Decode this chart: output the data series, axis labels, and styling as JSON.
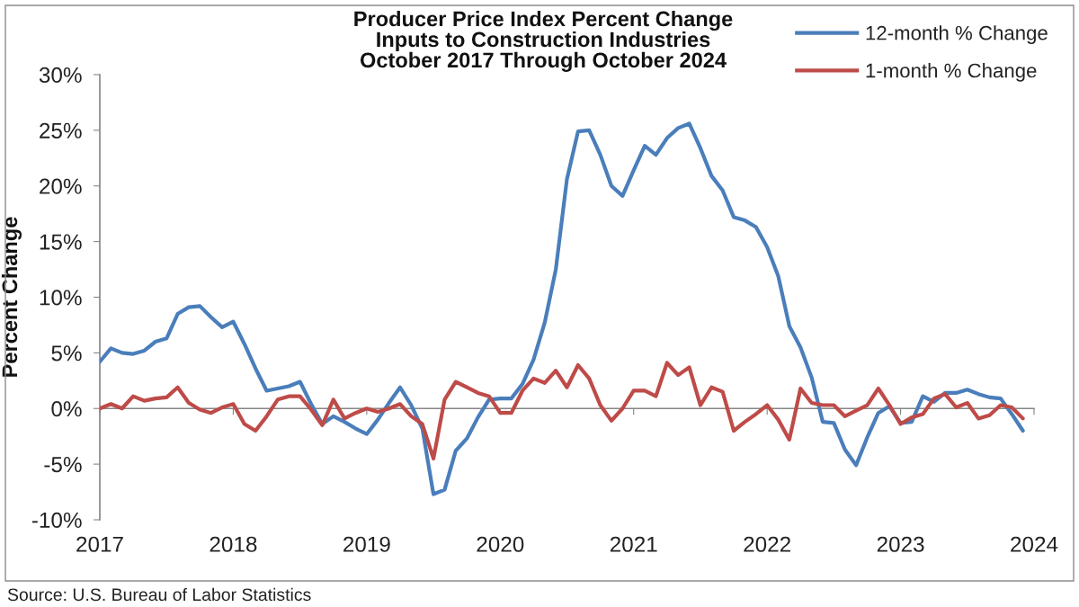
{
  "chart_data": {
    "type": "line",
    "title": "Producer Price Index Percent Change\nInputs to Construction Industries\nOctober 2017 Through October 2024",
    "ylabel": "Percent Change",
    "categories": [
      "2017",
      null,
      null,
      null,
      null,
      null,
      null,
      null,
      null,
      null,
      null,
      null,
      "2018",
      null,
      null,
      null,
      null,
      null,
      null,
      null,
      null,
      null,
      null,
      null,
      "2019",
      null,
      null,
      null,
      null,
      null,
      null,
      null,
      null,
      null,
      null,
      null,
      "2020",
      null,
      null,
      null,
      null,
      null,
      null,
      null,
      null,
      null,
      null,
      null,
      "2021",
      null,
      null,
      null,
      null,
      null,
      null,
      null,
      null,
      null,
      null,
      null,
      "2022",
      null,
      null,
      null,
      null,
      null,
      null,
      null,
      null,
      null,
      null,
      null,
      "2023",
      null,
      null,
      null,
      null,
      null,
      null,
      null,
      null,
      null,
      null,
      null,
      "2024"
    ],
    "series": [
      {
        "name": "12-month % Change",
        "color": "#4A7EBB",
        "values": [
          4.2,
          5.4,
          5.0,
          4.9,
          5.2,
          6.0,
          6.3,
          8.5,
          9.1,
          9.2,
          8.2,
          7.3,
          7.8,
          5.8,
          3.6,
          1.6,
          1.8,
          2.0,
          2.4,
          0.4,
          -1.4,
          -0.7,
          -1.2,
          -1.8,
          -2.3,
          -1.0,
          0.5,
          1.9,
          0.3,
          -1.8,
          -7.7,
          -7.3,
          -3.8,
          -2.7,
          -0.8,
          0.8,
          0.9,
          0.9,
          2.2,
          4.4,
          7.7,
          12.5,
          20.6,
          24.9,
          25.0,
          22.8,
          20.0,
          19.1,
          21.4,
          23.6,
          22.8,
          24.3,
          25.2,
          25.6,
          23.4,
          20.9,
          19.6,
          17.2,
          16.9,
          16.3,
          14.5,
          11.9,
          7.4,
          5.5,
          2.8,
          -1.2,
          -1.3,
          -3.7,
          -5.1,
          -2.6,
          -0.4,
          0.2,
          -1.3,
          -1.2,
          1.1,
          0.6,
          1.4,
          1.4,
          1.7,
          1.3,
          1.0,
          0.9,
          -0.5,
          -2.0,
          null
        ]
      },
      {
        "name": "1-month % Change",
        "color": "#BE4B48",
        "values": [
          0.0,
          0.4,
          0.0,
          1.1,
          0.7,
          0.9,
          1.0,
          1.9,
          0.5,
          -0.1,
          -0.4,
          0.1,
          0.4,
          -1.4,
          -2.0,
          -0.7,
          0.8,
          1.1,
          1.1,
          -0.1,
          -1.5,
          0.8,
          -0.9,
          -0.4,
          0.0,
          -0.3,
          0.0,
          0.4,
          -0.7,
          -1.4,
          -4.5,
          0.8,
          2.4,
          1.9,
          1.4,
          1.1,
          -0.4,
          -0.4,
          1.6,
          2.7,
          2.3,
          3.4,
          1.9,
          3.9,
          2.7,
          0.3,
          -1.1,
          0.0,
          1.6,
          1.6,
          1.1,
          4.1,
          3.0,
          3.7,
          0.3,
          1.9,
          1.5,
          -2.0,
          -1.2,
          -0.5,
          0.3,
          -1.0,
          -2.8,
          1.8,
          0.5,
          0.3,
          0.3,
          -0.7,
          -0.2,
          0.3,
          1.8,
          0.3,
          -1.4,
          -0.8,
          -0.5,
          0.9,
          1.3,
          0.1,
          0.5,
          -0.9,
          -0.6,
          0.3,
          0.1,
          -0.9,
          null
        ]
      }
    ],
    "ylim": [
      -10,
      30
    ],
    "yticks": [
      {
        "value": -10,
        "label": "-10%"
      },
      {
        "value": -5,
        "label": "-5%"
      },
      {
        "value": 0,
        "label": "0%"
      },
      {
        "value": 5,
        "label": "5%"
      },
      {
        "value": 10,
        "label": "10%"
      },
      {
        "value": 15,
        "label": "15%"
      },
      {
        "value": 20,
        "label": "20%"
      },
      {
        "value": 25,
        "label": "25%"
      },
      {
        "value": 30,
        "label": "30%"
      }
    ],
    "legend": "top right",
    "line_style": "solid",
    "annotations": [
      "Source: U.S. Bureau of Labor Statistics"
    ]
  }
}
